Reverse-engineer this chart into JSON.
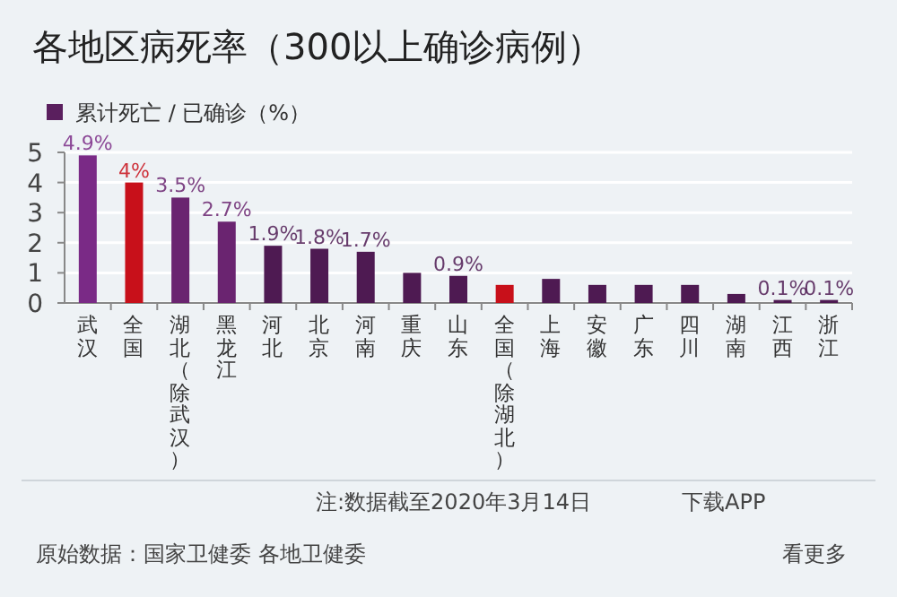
{
  "chart_data": {
    "type": "bar",
    "title": "各地区病死率（300以上确诊病例）",
    "categories": [
      "武汉",
      "全国",
      "湖北（除武汉）",
      "黑龙江",
      "河北",
      "北京",
      "河南",
      "重庆",
      "山东",
      "全国（除湖北）",
      "上海",
      "安徽",
      "广东",
      "四川",
      "湖南",
      "江西",
      "浙江"
    ],
    "series": [
      {
        "name": "累计死亡 / 已确诊（%）",
        "color": "#5a1f5e",
        "values": [
          4.9,
          4.0,
          3.5,
          2.7,
          1.9,
          1.8,
          1.7,
          1.0,
          0.9,
          0.6,
          0.8,
          0.6,
          0.6,
          0.6,
          0.3,
          0.1,
          0.1
        ],
        "colors": [
          "#7a2a86",
          "#c8101a",
          "#6a2470",
          "#6a2470",
          "#4e1a52",
          "#4e1a52",
          "#4e1a52",
          "#4e1a52",
          "#4e1a52",
          "#c8101a",
          "#4e1a52",
          "#4e1a52",
          "#4e1a52",
          "#4e1a52",
          "#4e1a52",
          "#4e1a52",
          "#4e1a52"
        ],
        "value_labels": [
          "4.9%",
          "4%",
          "3.5%",
          "2.7%",
          "1.9%",
          "1.8%",
          "1.7%",
          null,
          "0.9%",
          null,
          null,
          null,
          null,
          null,
          null,
          "0.1%",
          "0.1%"
        ]
      }
    ],
    "ylim": [
      0,
      5
    ],
    "yticks": [
      0,
      1,
      2,
      3,
      4,
      5
    ],
    "grid": "y",
    "legend": "top left",
    "annotations": [
      "注:数据截至2020年3月14日",
      "原始数据：国家卫健委 各地卫健委",
      "下载APP",
      "看更多"
    ]
  }
}
